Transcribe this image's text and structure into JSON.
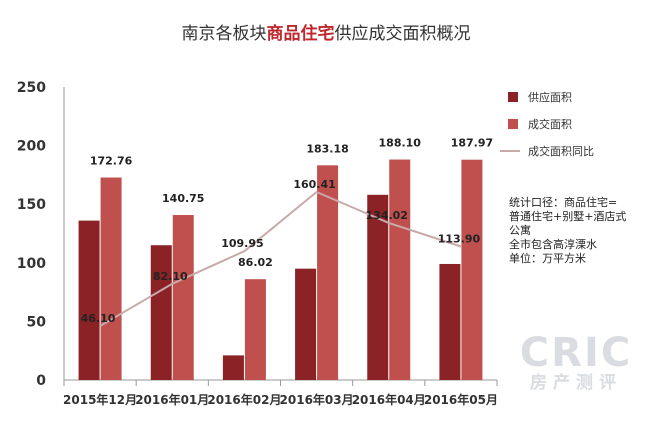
{
  "chart_data": {
    "type": "bar",
    "title": {
      "prefix": "南京各板块",
      "highlight": "商品住宅",
      "suffix": "供应成交面积概况"
    },
    "categories": [
      "2015年12月",
      "2016年01月",
      "2016年02月",
      "2016年03月",
      "2016年04月",
      "2016年05月"
    ],
    "series": [
      {
        "name": "供应面积",
        "kind": "bar",
        "color": "#8b2226",
        "values": [
          136,
          115,
          21,
          95,
          158,
          99
        ]
      },
      {
        "name": "成交面积",
        "kind": "bar",
        "color": "#c0504d",
        "values": [
          172.76,
          140.75,
          86.02,
          183.18,
          188.1,
          187.97
        ]
      },
      {
        "name": "成交面积同比",
        "kind": "line",
        "color": "#c9a9aa",
        "values": [
          46.1,
          82.1,
          109.95,
          160.41,
          134.02,
          113.9
        ]
      }
    ],
    "data_labels": {
      "bar": [
        "172.76",
        "140.75",
        "86.02",
        "183.18",
        "188.10",
        "187.97"
      ],
      "line": [
        "46.10",
        "82.10",
        "109.95",
        "160.41",
        "134.02",
        "113.90"
      ]
    },
    "yticks": [
      "0",
      "50",
      "100",
      "150",
      "200",
      "250"
    ],
    "ylim": [
      0,
      250
    ],
    "legend_position": "right",
    "grid": false
  },
  "note": {
    "lines": [
      "统计口径：商品住宅=",
      "普通住宅+别墅+酒店式",
      "公寓",
      "全市包含高淳溧水",
      "单位：万平方米"
    ]
  },
  "watermark": {
    "main": "CRIC",
    "sub": "房产测评"
  }
}
